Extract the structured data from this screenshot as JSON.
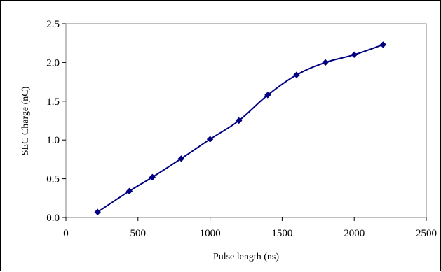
{
  "chart_data": {
    "type": "line",
    "title": "",
    "xlabel": "Pulse length (ns)",
    "ylabel": "SEC Charge (nC)",
    "xlim": [
      0,
      2500
    ],
    "ylim": [
      0.0,
      2.5
    ],
    "x_ticks": [
      0,
      500,
      1000,
      1500,
      2000,
      2500
    ],
    "y_ticks": [
      "0.0",
      "0.5",
      "1.0",
      "1.5",
      "2.0",
      "2.5"
    ],
    "grid": false,
    "legend": "none",
    "series": [
      {
        "color": "#000080",
        "marker": "diamond",
        "smooth": true,
        "x": [
          220,
          440,
          600,
          800,
          1000,
          1200,
          1400,
          1600,
          1800,
          2000,
          2200
        ],
        "y": [
          0.07,
          0.34,
          0.52,
          0.76,
          1.01,
          1.25,
          1.58,
          1.84,
          2.0,
          2.1,
          2.23
        ]
      }
    ]
  }
}
